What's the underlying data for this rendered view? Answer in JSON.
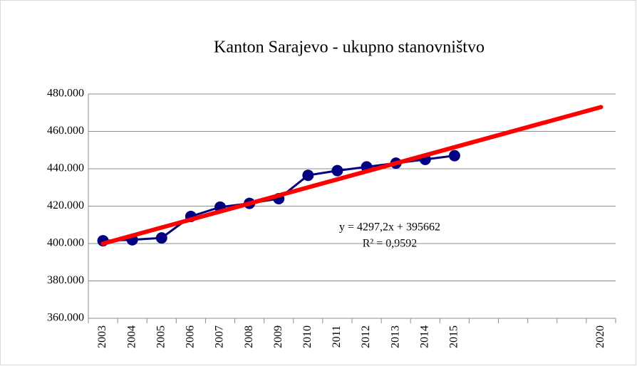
{
  "chart_data": {
    "type": "line",
    "title": "Kanton Sarajevo - ukupno stanovništvo",
    "categories": [
      "2003",
      "2004",
      "2005",
      "2006",
      "2007",
      "2008",
      "2009",
      "2010",
      "2011",
      "2012",
      "2013",
      "2014",
      "2015",
      null,
      null,
      null,
      null,
      "2020"
    ],
    "series": [
      {
        "color": "#000080",
        "values": [
          401500,
          402000,
          403000,
          414500,
          419500,
          421500,
          424000,
          436500,
          439000,
          441000,
          443000,
          445000,
          447000,
          null,
          null,
          null,
          null,
          null
        ]
      }
    ],
    "trendline": {
      "color": "#ff0000",
      "slope": 4297.2,
      "intercept": 395662,
      "label": "y = 4297,2x + 395662",
      "r2_label": "R² = 0,9592"
    },
    "ylim": [
      360000,
      480000
    ],
    "yticks": [
      {
        "value": 360000,
        "label": "360.000"
      },
      {
        "value": 380000,
        "label": "380.000"
      },
      {
        "value": 400000,
        "label": "400.000"
      },
      {
        "value": 420000,
        "label": "420.000"
      },
      {
        "value": 440000,
        "label": "440.000"
      },
      {
        "value": 460000,
        "label": "460.000"
      },
      {
        "value": 480000,
        "label": "480.000"
      }
    ],
    "grid": true
  }
}
